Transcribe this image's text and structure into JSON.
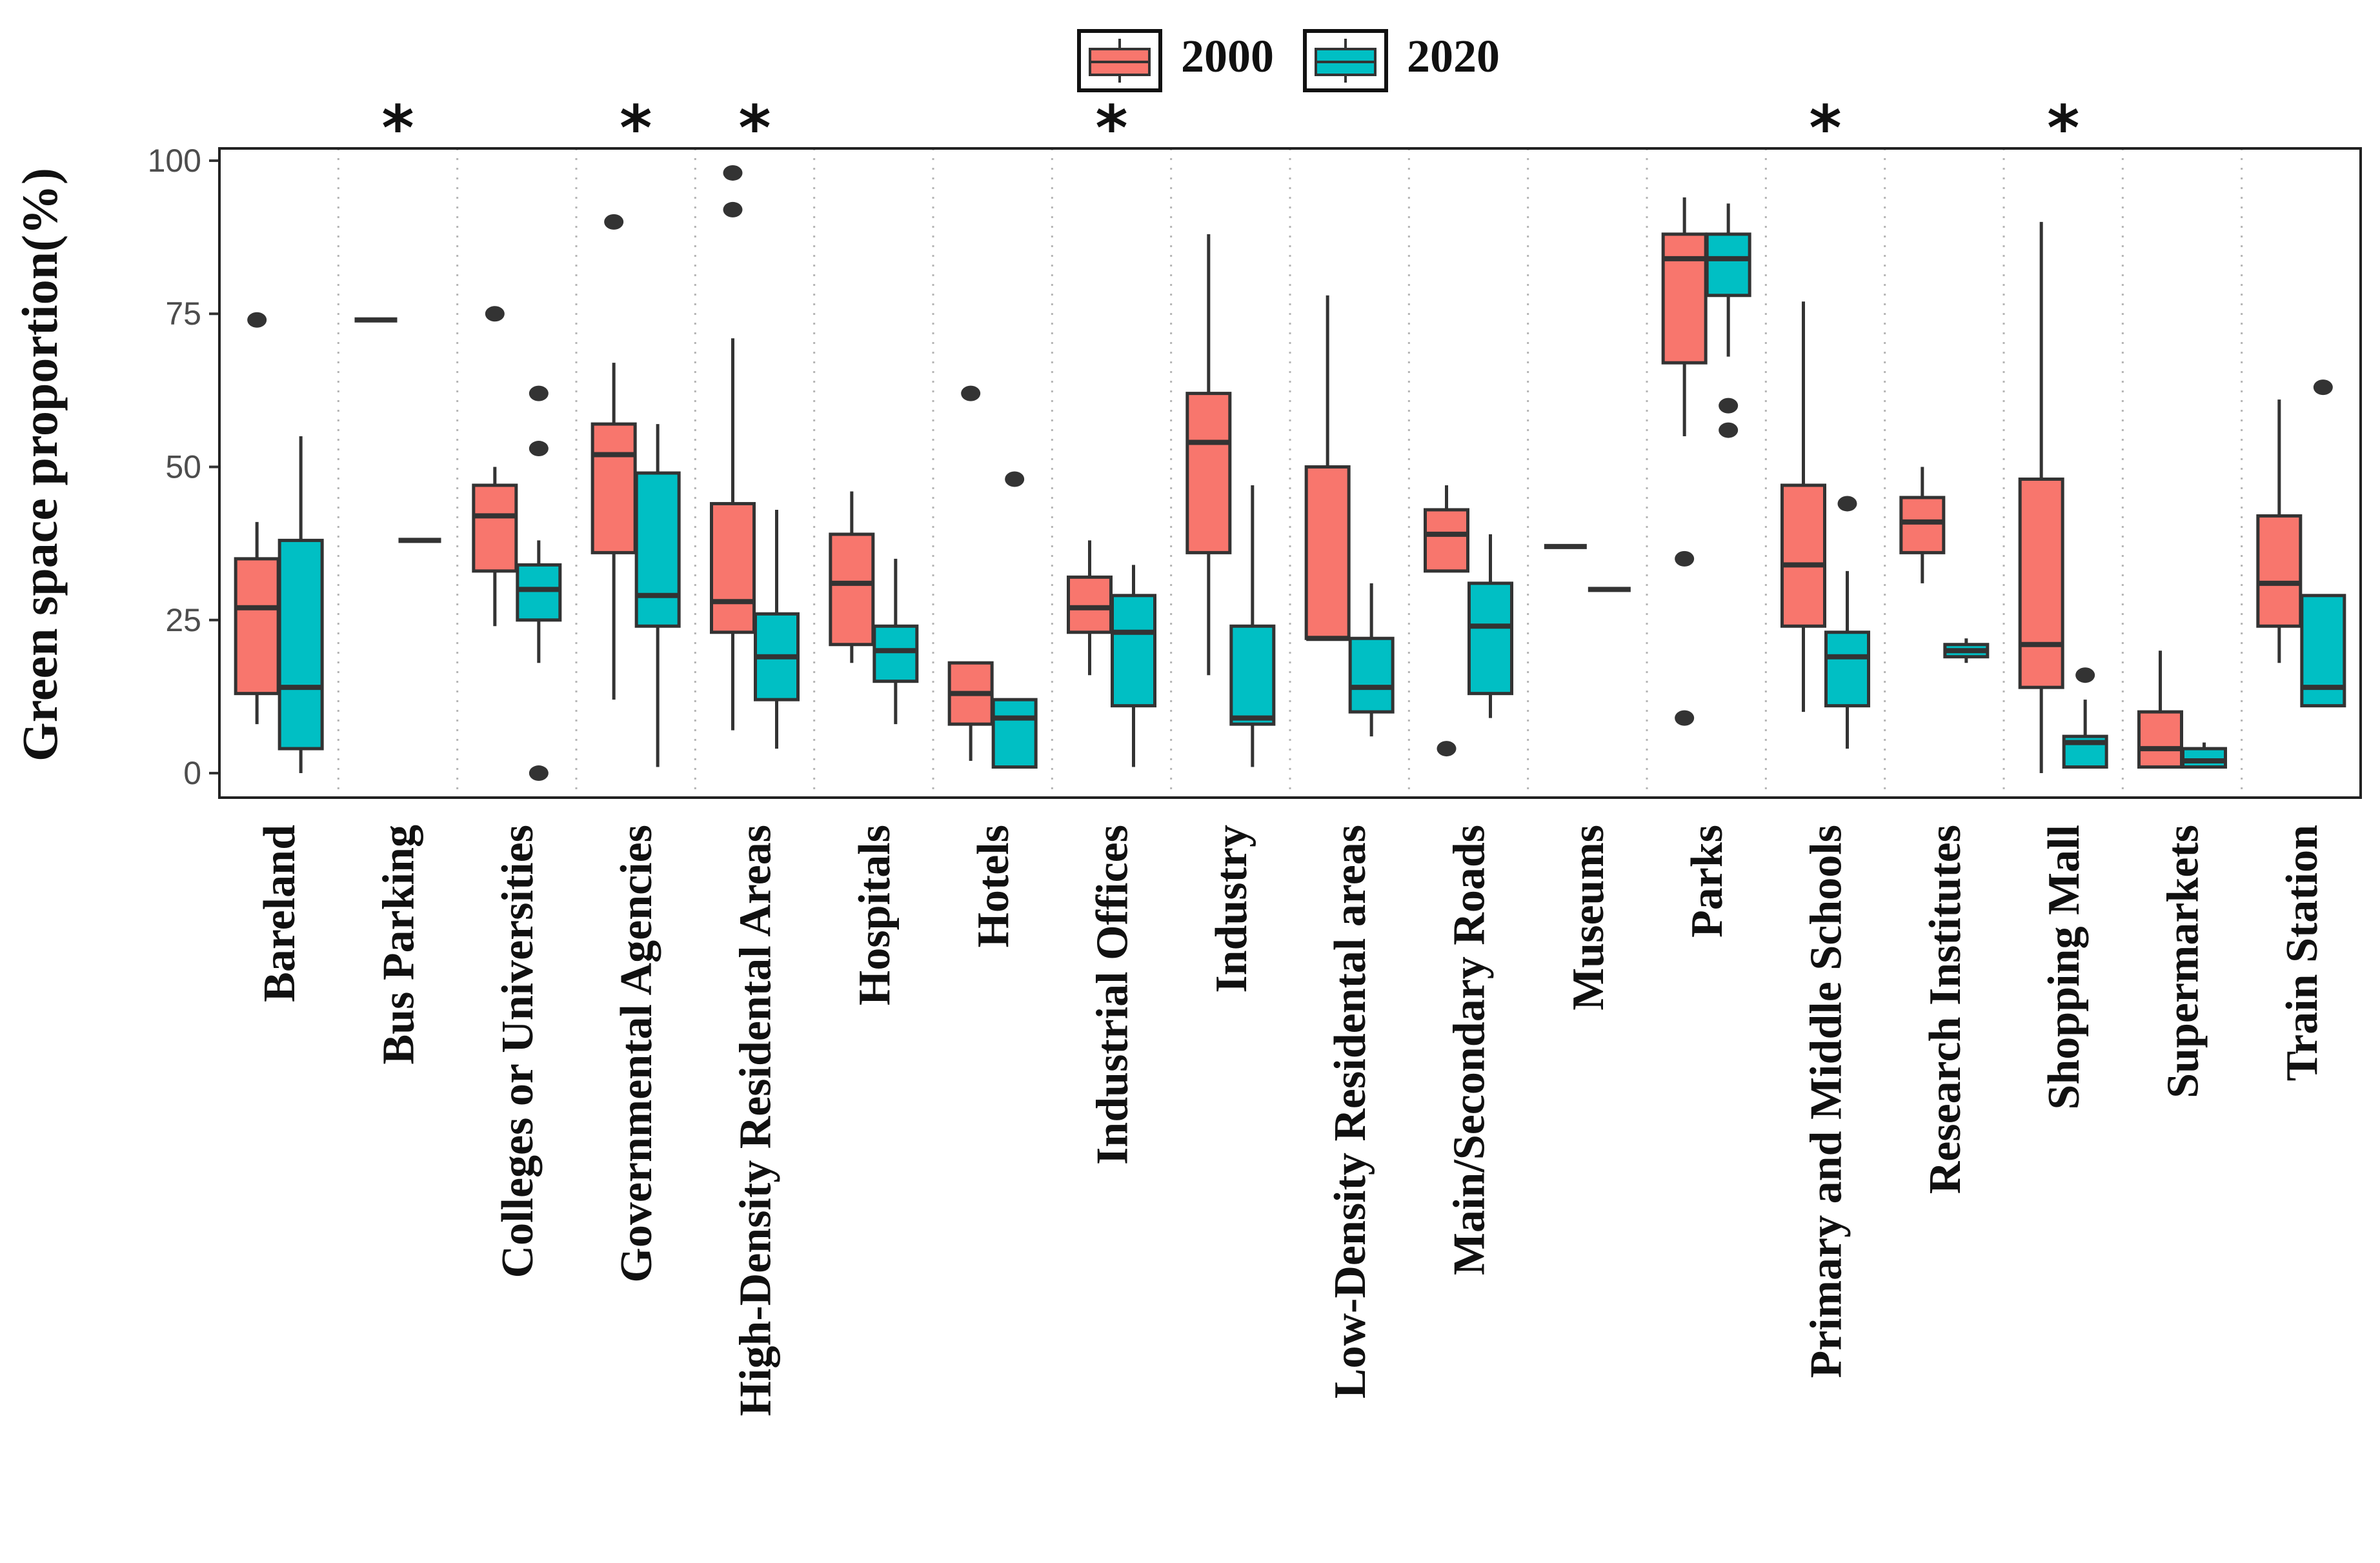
{
  "chart_data": {
    "type": "boxplot",
    "title": "",
    "xlabel": "",
    "ylabel": "Green space proportion(%)",
    "ylim": [
      -4,
      102
    ],
    "yticks": [
      0,
      25,
      50,
      75,
      100
    ],
    "ytick_labels": [
      "0",
      "25",
      "50",
      "75",
      "100"
    ],
    "grid": "dotted vertical separators between categories",
    "legend": {
      "position": "top-center",
      "entries": [
        {
          "label": "2000",
          "color": "#F8766D"
        },
        {
          "label": "2020",
          "color": "#00BFC4"
        }
      ]
    },
    "categories": [
      "Bareland",
      "Bus Parking",
      "Colleges or Universities",
      "Governmental Agencies",
      "High-Density Residental Areas",
      "Hospitals",
      "Hotels",
      "Industrial Offices",
      "Industry",
      "Low-Density Residental areas",
      "Main/Secondary Roads",
      "Museums",
      "Parks",
      "Primary and Middle Schools",
      "Research Institutes",
      "Shopping Mall",
      "Supermarkets",
      "Train Station"
    ],
    "significance_marker": "*",
    "significant": [
      false,
      true,
      false,
      true,
      true,
      false,
      false,
      true,
      false,
      false,
      false,
      false,
      false,
      true,
      false,
      true,
      false,
      false
    ],
    "series": [
      {
        "name": "2000",
        "color": "#F8766D",
        "boxes": [
          {
            "min": 8,
            "q1": 13,
            "median": 27,
            "q3": 35,
            "max": 41,
            "outliers": [
              74
            ]
          },
          {
            "min": 74,
            "q1": 74,
            "median": 74,
            "q3": 74,
            "max": 74,
            "outliers": []
          },
          {
            "min": 24,
            "q1": 33,
            "median": 42,
            "q3": 47,
            "max": 50,
            "outliers": [
              75
            ]
          },
          {
            "min": 12,
            "q1": 36,
            "median": 52,
            "q3": 57,
            "max": 67,
            "outliers": [
              90
            ]
          },
          {
            "min": 7,
            "q1": 23,
            "median": 28,
            "q3": 44,
            "max": 71,
            "outliers": [
              92,
              98
            ]
          },
          {
            "min": 18,
            "q1": 21,
            "median": 31,
            "q3": 39,
            "max": 46,
            "outliers": []
          },
          {
            "min": 2,
            "q1": 8,
            "median": 13,
            "q3": 18,
            "max": 18,
            "outliers": [
              62
            ]
          },
          {
            "min": 16,
            "q1": 23,
            "median": 27,
            "q3": 32,
            "max": 38,
            "outliers": []
          },
          {
            "min": 16,
            "q1": 36,
            "median": 54,
            "q3": 62,
            "max": 88,
            "outliers": []
          },
          {
            "min": 22,
            "q1": 22,
            "median": 22,
            "q3": 50,
            "max": 78,
            "outliers": []
          },
          {
            "min": 33,
            "q1": 33,
            "median": 39,
            "q3": 43,
            "max": 47,
            "outliers": [
              4
            ]
          },
          {
            "min": 37,
            "q1": 37,
            "median": 37,
            "q3": 37,
            "max": 37,
            "outliers": []
          },
          {
            "min": 55,
            "q1": 67,
            "median": 84,
            "q3": 88,
            "max": 94,
            "outliers": [
              35,
              9
            ]
          },
          {
            "min": 10,
            "q1": 24,
            "median": 34,
            "q3": 47,
            "max": 77,
            "outliers": []
          },
          {
            "min": 31,
            "q1": 36,
            "median": 41,
            "q3": 45,
            "max": 50,
            "outliers": []
          },
          {
            "min": 0,
            "q1": 14,
            "median": 21,
            "q3": 48,
            "max": 90,
            "outliers": []
          },
          {
            "min": 1,
            "q1": 1,
            "median": 4,
            "q3": 10,
            "max": 20,
            "outliers": []
          },
          {
            "min": 18,
            "q1": 24,
            "median": 31,
            "q3": 42,
            "max": 61,
            "outliers": []
          }
        ]
      },
      {
        "name": "2020",
        "color": "#00BFC4",
        "boxes": [
          {
            "min": 0,
            "q1": 4,
            "median": 14,
            "q3": 38,
            "max": 55,
            "outliers": []
          },
          {
            "min": 38,
            "q1": 38,
            "median": 38,
            "q3": 38,
            "max": 38,
            "outliers": []
          },
          {
            "min": 18,
            "q1": 25,
            "median": 30,
            "q3": 34,
            "max": 38,
            "outliers": [
              62,
              53,
              0
            ]
          },
          {
            "min": 1,
            "q1": 24,
            "median": 29,
            "q3": 49,
            "max": 57,
            "outliers": []
          },
          {
            "min": 4,
            "q1": 12,
            "median": 19,
            "q3": 26,
            "max": 43,
            "outliers": []
          },
          {
            "min": 8,
            "q1": 15,
            "median": 20,
            "q3": 24,
            "max": 35,
            "outliers": []
          },
          {
            "min": 1,
            "q1": 1,
            "median": 9,
            "q3": 12,
            "max": 12,
            "outliers": [
              48
            ]
          },
          {
            "min": 1,
            "q1": 11,
            "median": 23,
            "q3": 29,
            "max": 34,
            "outliers": []
          },
          {
            "min": 1,
            "q1": 8,
            "median": 9,
            "q3": 24,
            "max": 47,
            "outliers": []
          },
          {
            "min": 6,
            "q1": 10,
            "median": 14,
            "q3": 22,
            "max": 31,
            "outliers": []
          },
          {
            "min": 9,
            "q1": 13,
            "median": 24,
            "q3": 31,
            "max": 39,
            "outliers": []
          },
          {
            "min": 30,
            "q1": 30,
            "median": 30,
            "q3": 30,
            "max": 30,
            "outliers": []
          },
          {
            "min": 68,
            "q1": 78,
            "median": 84,
            "q3": 88,
            "max": 93,
            "outliers": [
              60,
              56
            ]
          },
          {
            "min": 4,
            "q1": 11,
            "median": 19,
            "q3": 23,
            "max": 33,
            "outliers": [
              44
            ]
          },
          {
            "min": 18,
            "q1": 19,
            "median": 20,
            "q3": 21,
            "max": 22,
            "outliers": []
          },
          {
            "min": 1,
            "q1": 1,
            "median": 5,
            "q3": 6,
            "max": 12,
            "outliers": [
              16
            ]
          },
          {
            "min": 1,
            "q1": 1,
            "median": 2,
            "q3": 4,
            "max": 5,
            "outliers": []
          },
          {
            "min": 11,
            "q1": 11,
            "median": 14,
            "q3": 29,
            "max": 29,
            "outliers": [
              63
            ]
          }
        ]
      }
    ]
  }
}
